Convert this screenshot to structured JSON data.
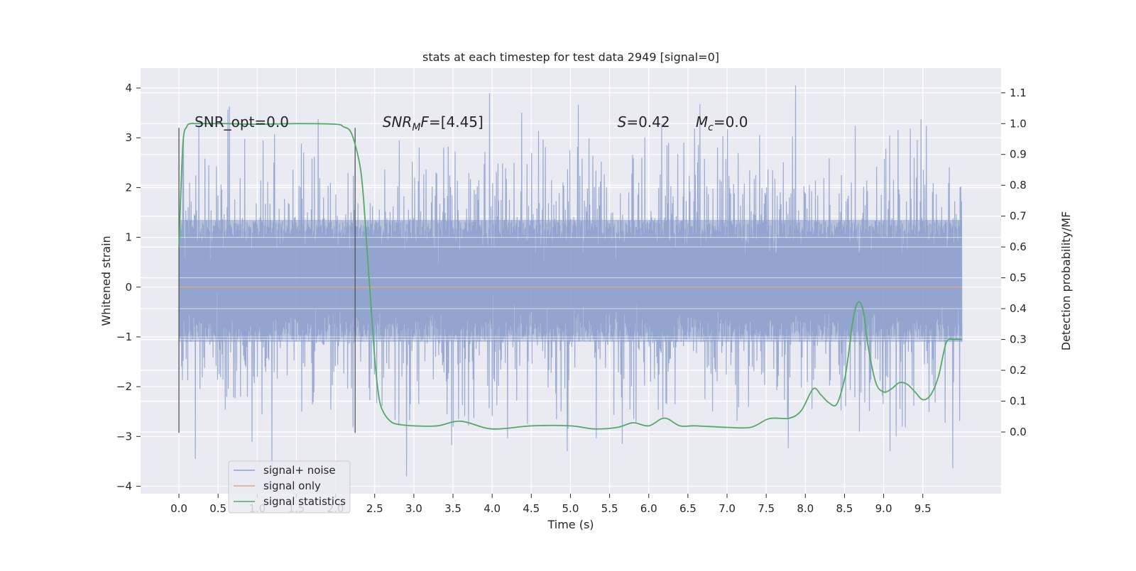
{
  "chart_data": {
    "type": "line",
    "title": "stats at each timestep for test data 2949 [signal=0]",
    "xlabel": "Time (s)",
    "ylabel": "Whitened strain",
    "y2label": "Detection probability/MF",
    "xlim": [
      -0.49,
      10.5
    ],
    "ylim": [
      -4.15,
      4.4
    ],
    "y2lim": [
      -0.2,
      1.18
    ],
    "xticks": [
      0.0,
      0.5,
      1.0,
      1.5,
      2.0,
      2.5,
      3.0,
      3.5,
      4.0,
      4.5,
      5.0,
      5.5,
      6.0,
      6.5,
      7.0,
      7.5,
      8.0,
      8.5,
      9.0,
      9.5
    ],
    "xtick_labels": [
      "0.0",
      "0.5",
      "1.0",
      "1.5",
      "2.0",
      "2.5",
      "3.0",
      "3.5",
      "4.0",
      "4.5",
      "5.0",
      "5.5",
      "6.0",
      "6.5",
      "7.0",
      "7.5",
      "8.0",
      "8.5",
      "9.0",
      "9.5"
    ],
    "yticks": [
      4,
      3,
      2,
      1,
      0,
      -1,
      -2,
      -3,
      -4
    ],
    "ytick_labels": [
      "4",
      "3",
      "2",
      "1",
      "0",
      "−1",
      "−2",
      "−3",
      "−4"
    ],
    "y2ticks": [
      1.1,
      1.0,
      0.9,
      0.8,
      0.7,
      0.6,
      0.5,
      0.4,
      0.3,
      0.2,
      0.1,
      0.0
    ],
    "y2tick_labels": [
      "1.1",
      "1.0",
      "0.9",
      "0.8",
      "0.7",
      "0.6",
      "0.5",
      "0.4",
      "0.3",
      "0.2",
      "0.1",
      "0.0"
    ],
    "grid": true,
    "legend_position": "bottom-left",
    "annotations": [
      {
        "text": "SNR_opt=0.0",
        "x": 0.2,
        "y": 3.22
      },
      {
        "text": "SNR_MF=[4.45]",
        "x": 2.6,
        "y": 3.22
      },
      {
        "text": "S=0.42",
        "x": 5.6,
        "y": 3.22
      },
      {
        "text": "M_c=0.0",
        "x": 6.6,
        "y": 3.22
      }
    ],
    "vlines": [
      {
        "x": 0.0,
        "ymin": -2.93,
        "ymax": 3.2
      },
      {
        "x": 2.25,
        "ymin": -2.93,
        "ymax": 3.2
      }
    ],
    "series": [
      {
        "name": "signal+ noise",
        "axis": "left",
        "color": "#8da0cb",
        "kind": "noise",
        "x_range": [
          0.0,
          10.0
        ],
        "n_points": 2048,
        "envelope": {
          "core_low": -1.1,
          "core_high": 1.35,
          "max": 4.05,
          "min": -3.8
        }
      },
      {
        "name": "signal only",
        "axis": "left",
        "color": "#e5a58c",
        "x": [
          0.0,
          10.0
        ],
        "y": [
          0.0,
          0.0
        ]
      },
      {
        "name": "signal statistics",
        "axis": "right",
        "color": "#55a868",
        "x": [
          0.0,
          0.05,
          0.1,
          0.15,
          0.2,
          0.4,
          0.6,
          1.0,
          1.5,
          2.0,
          2.1,
          2.2,
          2.3,
          2.35,
          2.4,
          2.45,
          2.5,
          2.55,
          2.6,
          2.7,
          2.8,
          3.0,
          3.3,
          3.6,
          4.0,
          4.5,
          5.0,
          5.3,
          5.6,
          5.8,
          6.0,
          6.2,
          6.4,
          6.6,
          7.0,
          7.3,
          7.5,
          7.6,
          7.8,
          7.95,
          8.1,
          8.2,
          8.3,
          8.4,
          8.5,
          8.55,
          8.6,
          8.65,
          8.7,
          8.75,
          8.8,
          8.9,
          9.0,
          9.1,
          9.2,
          9.3,
          9.4,
          9.5,
          9.6,
          9.7,
          9.8,
          9.9,
          10.0
        ],
        "y": [
          0.6,
          0.93,
          0.99,
          1.0,
          1.0,
          1.0,
          1.0,
          0.998,
          1.0,
          0.998,
          0.99,
          0.97,
          0.88,
          0.78,
          0.6,
          0.42,
          0.24,
          0.12,
          0.07,
          0.035,
          0.025,
          0.02,
          0.02,
          0.035,
          0.01,
          0.02,
          0.02,
          0.01,
          0.015,
          0.03,
          0.02,
          0.045,
          0.02,
          0.02,
          0.015,
          0.015,
          0.04,
          0.045,
          0.045,
          0.07,
          0.14,
          0.12,
          0.095,
          0.09,
          0.17,
          0.25,
          0.35,
          0.41,
          0.42,
          0.38,
          0.28,
          0.16,
          0.13,
          0.14,
          0.16,
          0.155,
          0.13,
          0.105,
          0.12,
          0.18,
          0.29,
          0.3,
          0.3
        ]
      }
    ]
  }
}
